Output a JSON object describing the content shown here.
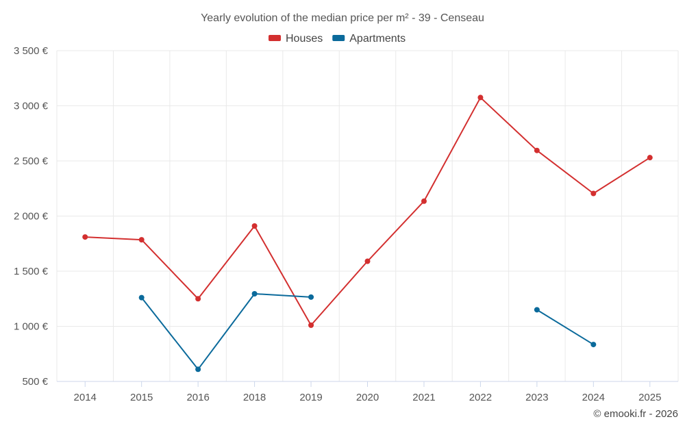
{
  "chart_data": {
    "type": "line",
    "title": "Yearly evolution of the median price per m² - 39 - Censeau",
    "categories": [
      "2014",
      "2015",
      "2016",
      "2018",
      "2019",
      "2020",
      "2021",
      "2022",
      "2023",
      "2024",
      "2025"
    ],
    "series": [
      {
        "name": "Houses",
        "color": "#d32f2f",
        "values": [
          1810,
          1785,
          1250,
          1910,
          1010,
          1590,
          2135,
          3075,
          2595,
          2205,
          2530
        ]
      },
      {
        "name": "Apartments",
        "color": "#0b6a9b",
        "values": [
          null,
          1260,
          610,
          1295,
          1265,
          null,
          null,
          null,
          1150,
          835,
          null
        ]
      }
    ],
    "ylim": [
      500,
      3500
    ],
    "yticks": [
      500,
      1000,
      1500,
      2000,
      2500,
      3000,
      3500
    ],
    "ytick_labels": [
      "500 €",
      "1 000 €",
      "1 500 €",
      "2 000 €",
      "2 500 €",
      "3 000 €",
      "3 500 €"
    ],
    "xlabel": "",
    "ylabel": "",
    "legend_position": "top-center",
    "grid": true
  },
  "credit": "© emooki.fr - 2026"
}
